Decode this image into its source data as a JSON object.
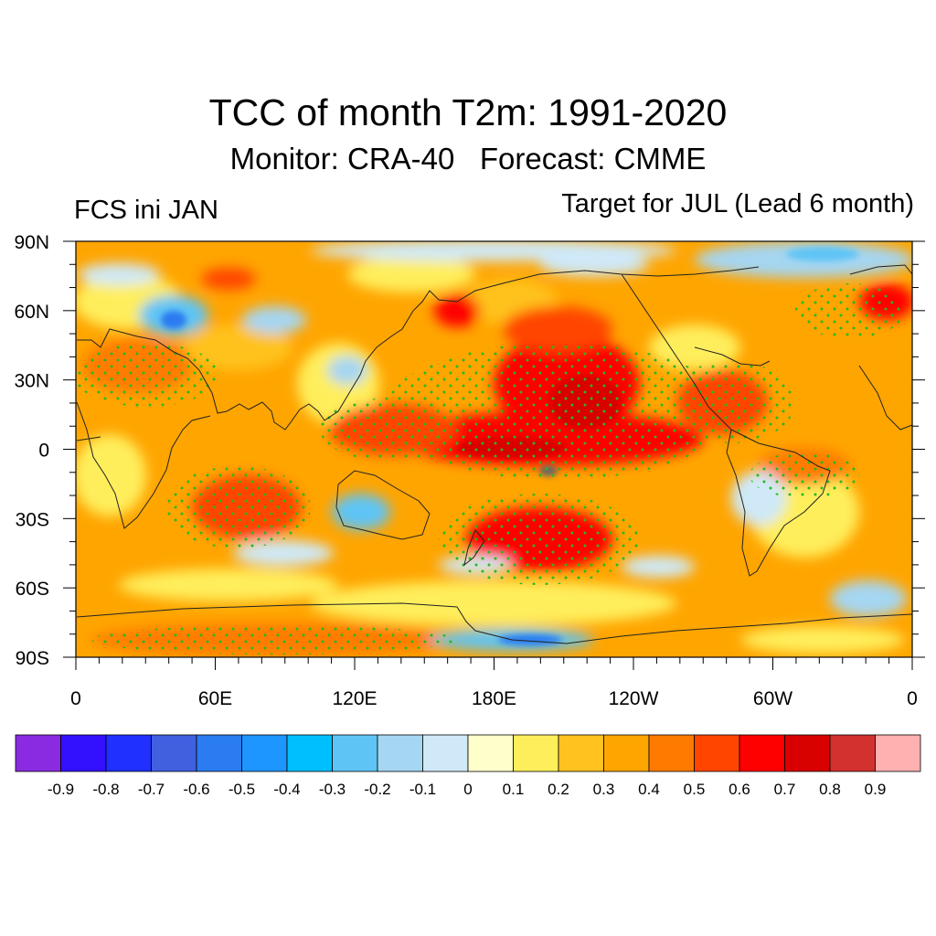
{
  "header": {
    "title": "TCC of month T2m: 1991-2020",
    "subtitle": "Monitor: CRA-40   Forecast: CMME",
    "left_label": "FCS ini JAN",
    "right_label": "Target for JUL (Lead 6 month)"
  },
  "map": {
    "lat_ticks": [
      "90N",
      "60N",
      "30N",
      "0",
      "30S",
      "60S",
      "90S"
    ],
    "lon_ticks": [
      "0",
      "60E",
      "120E",
      "180E",
      "120W",
      "60W",
      "0"
    ],
    "lat_values": [
      90,
      60,
      30,
      0,
      -30,
      -60,
      -90
    ],
    "lon_values": [
      0,
      60,
      120,
      180,
      240,
      300,
      360
    ],
    "significance_dot_color": "#22bb22",
    "projection": "cylindrical equidistant, 0-360E"
  },
  "colorbar": {
    "colors": [
      "#8a2be2",
      "#3311ff",
      "#1f30ff",
      "#4060e0",
      "#2b7cf0",
      "#1e96ff",
      "#00bfff",
      "#5ec4f5",
      "#a5d6f2",
      "#cfe9f8",
      "#ffffcc",
      "#ffee5c",
      "#ffc21e",
      "#ffa500",
      "#ff7b00",
      "#ff4500",
      "#ff0000",
      "#d90000",
      "#d33030",
      "#ffb0b0"
    ],
    "labels": [
      "-0.9",
      "-0.8",
      "-0.7",
      "-0.6",
      "-0.5",
      "-0.4",
      "-0.3",
      "-0.2",
      "-0.1",
      "0",
      "0.1",
      "0.2",
      "0.3",
      "0.4",
      "0.5",
      "0.6",
      "0.7",
      "0.8",
      "0.9"
    ]
  }
}
